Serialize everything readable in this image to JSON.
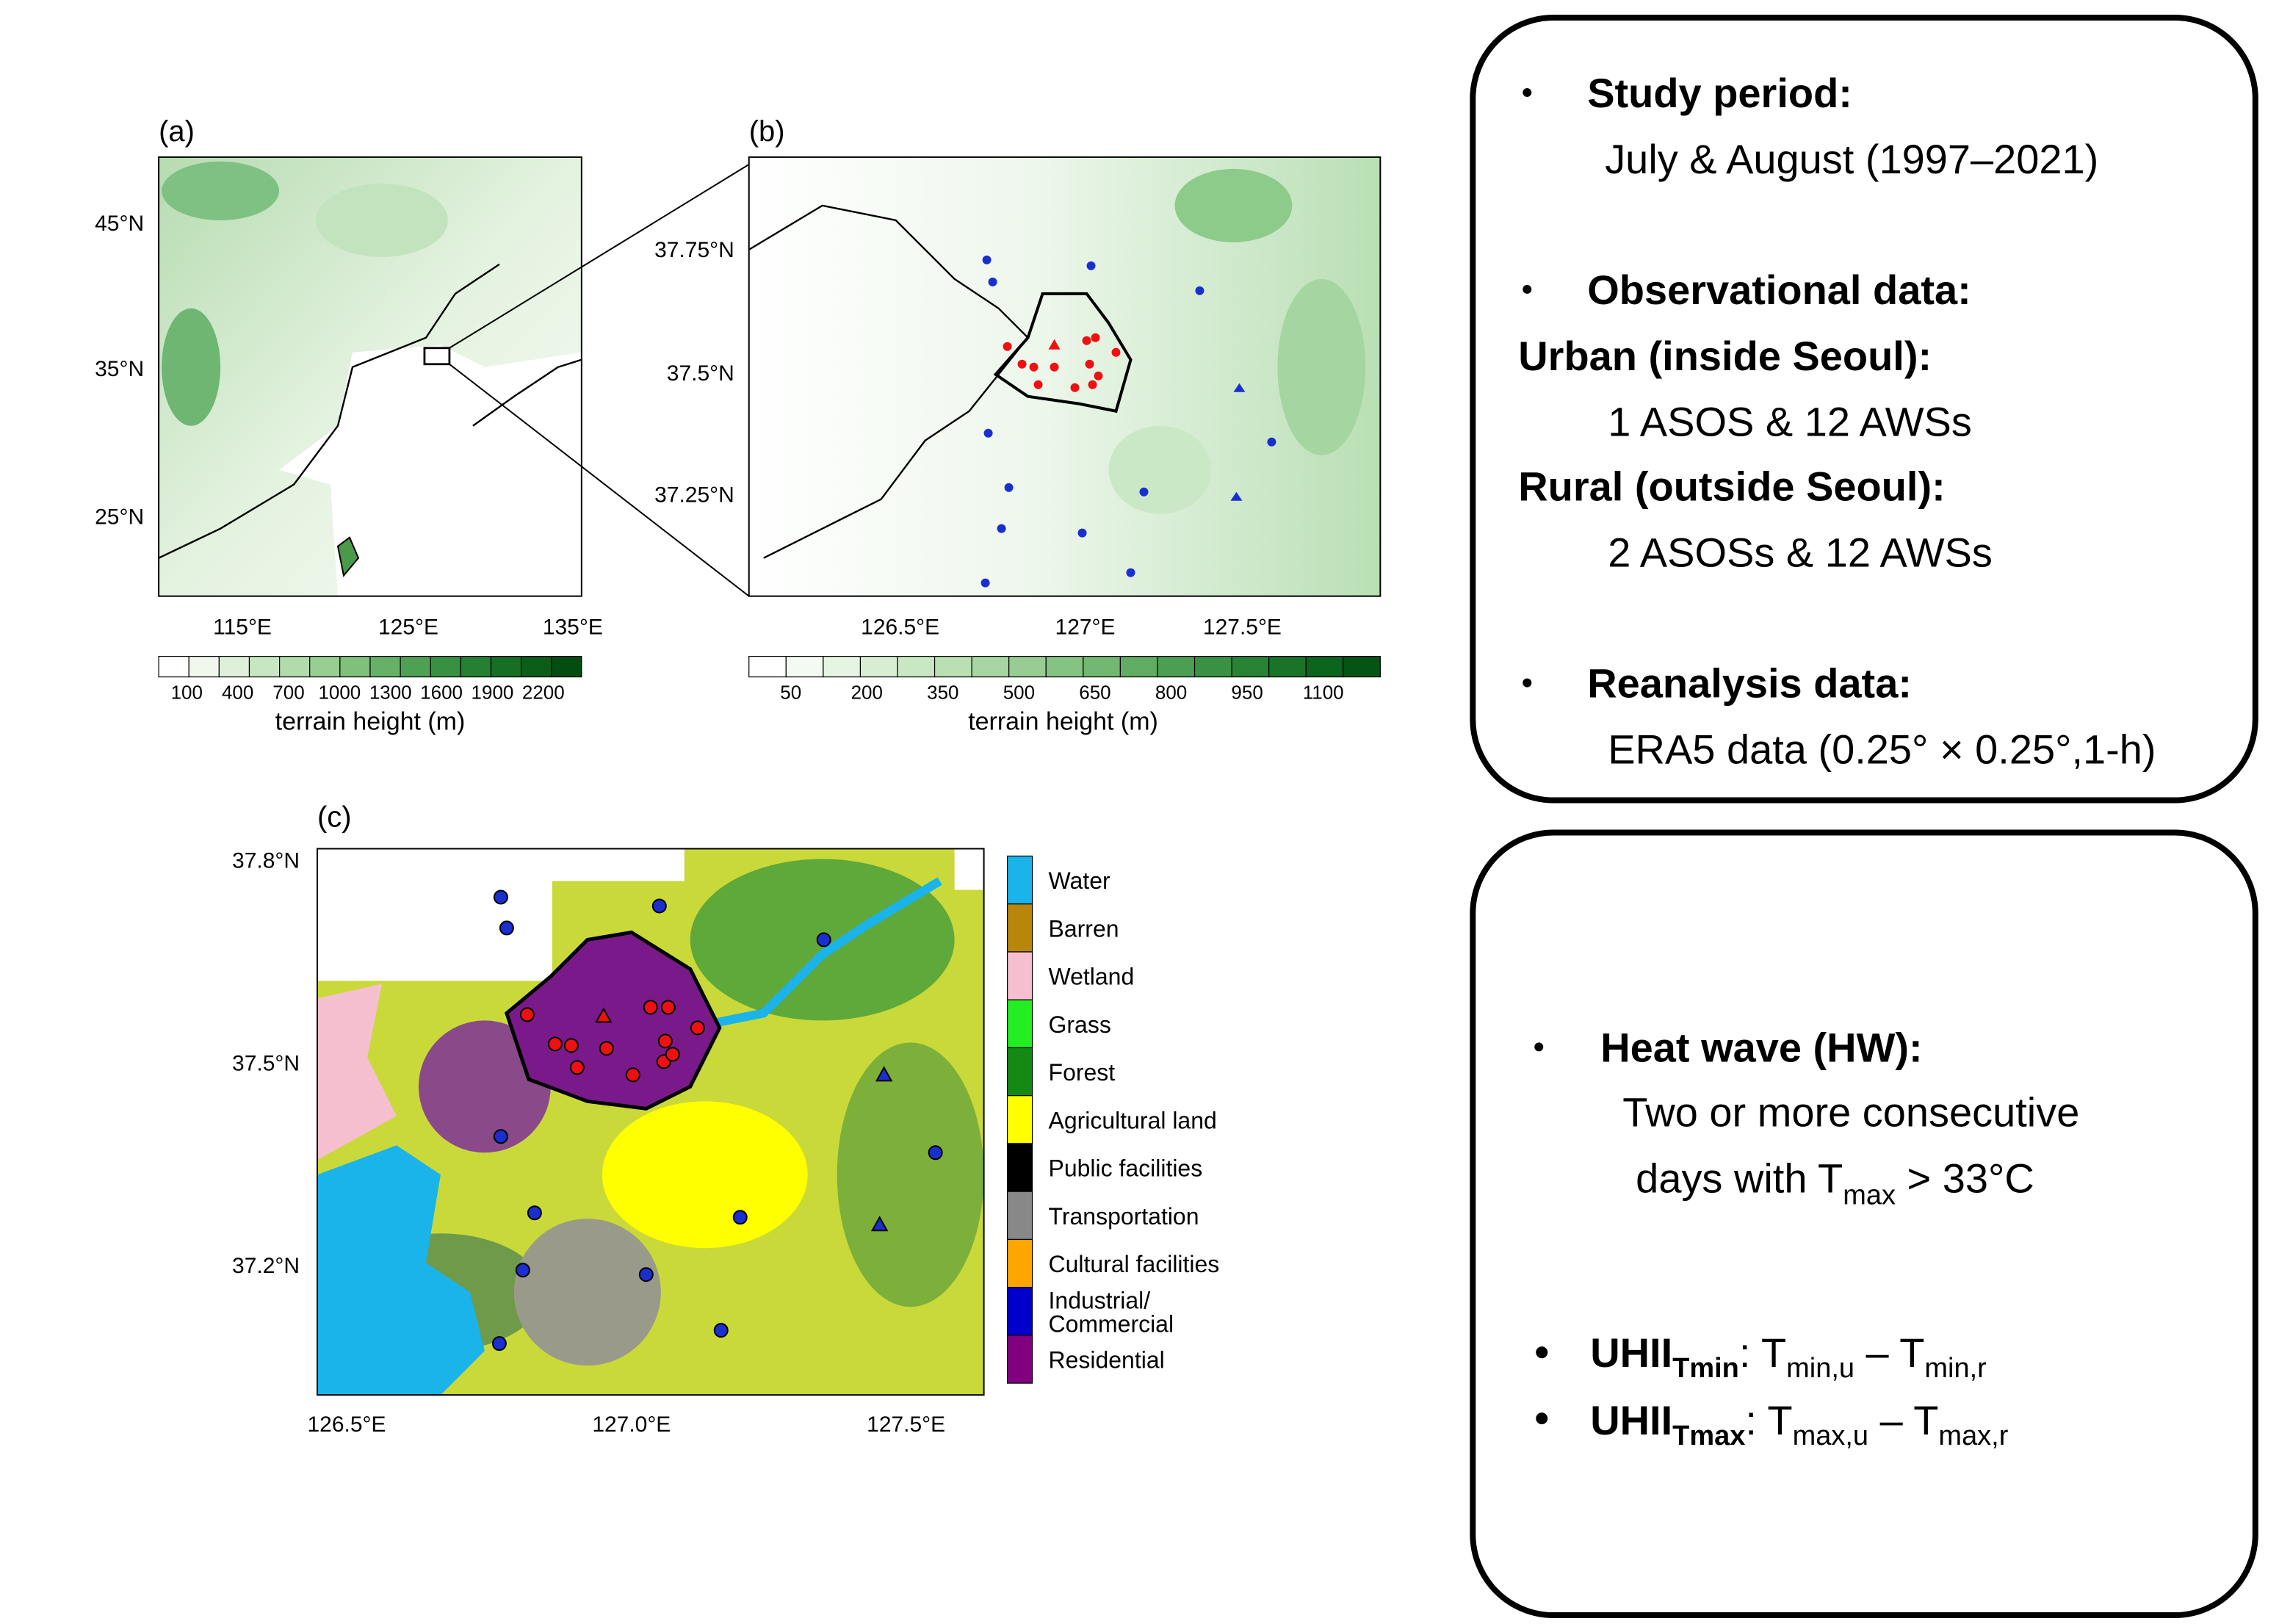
{
  "panel_a": {
    "label": "(a)",
    "lat_ticks": [
      "45°N",
      "35°N",
      "25°N"
    ],
    "lon_ticks": [
      "115°E",
      "125°E",
      "135°E"
    ],
    "colorbar_ticks": [
      100,
      400,
      700,
      1000,
      1300,
      1600,
      1900,
      2200
    ],
    "colorbar_title": "terrain height (m)"
  },
  "panel_b": {
    "label": "(b)",
    "lat_ticks": [
      "37.75°N",
      "37.5°N",
      "37.25°N"
    ],
    "lon_ticks": [
      "126.5°E",
      "127°E",
      "127.5°E"
    ],
    "colorbar_ticks": [
      50,
      200,
      350,
      500,
      650,
      800,
      950,
      1100
    ],
    "colorbar_title": "terrain height (m)"
  },
  "panel_c": {
    "label": "(c)",
    "lat_ticks": [
      "37.8°N",
      "37.5°N",
      "37.2°N"
    ],
    "lon_ticks": [
      "126.5°E",
      "127.0°E",
      "127.5°E"
    ],
    "legend": [
      {
        "lines": [
          "Water"
        ],
        "color": "#1ab4ea"
      },
      {
        "lines": [
          "Barren"
        ],
        "color": "#b8860b"
      },
      {
        "lines": [
          "Wetland"
        ],
        "color": "#f6bfd0"
      },
      {
        "lines": [
          "Grass"
        ],
        "color": "#22ee22"
      },
      {
        "lines": [
          "Forest"
        ],
        "color": "#138a13"
      },
      {
        "lines": [
          "Agricultural land"
        ],
        "color": "#ffff00"
      },
      {
        "lines": [
          "Public facilities"
        ],
        "color": "#000000"
      },
      {
        "lines": [
          "Transportation"
        ],
        "color": "#888888"
      },
      {
        "lines": [
          "Cultural facilities"
        ],
        "color": "#ffa500"
      },
      {
        "lines": [
          "Industrial/",
          "Commercial"
        ],
        "color": "#0000cc"
      },
      {
        "lines": [
          "Residential"
        ],
        "color": "#800080"
      }
    ]
  },
  "box1": {
    "study_period_heading": "Study period:",
    "study_period": "July & August  (1997–2021)",
    "obs_heading": "Observational data:",
    "urban_heading": "Urban (inside Seoul):",
    "urban": "1 ASOS & 12 AWSs",
    "rural_heading": "Rural (outside Seoul):",
    "rural": "2 ASOSs & 12 AWSs",
    "reanalysis_heading": "Reanalysis data:",
    "reanalysis": "ERA5 data (0.25° × 0.25°,1-h)"
  },
  "box2": {
    "heat_wave_heading": "Heat wave (HW):",
    "heat_wave_line1": "Two or more consecutive",
    "heat_wave_line2": "days with T",
    "tmax_sub": "max",
    "threshold": " > 33°C",
    "uhii": [
      {
        "label": "UHII",
        "label_sub": "Tmin",
        "rest": ": T",
        "a_sub": "min,u",
        "dash": " – T",
        "b_sub": "min,r"
      },
      {
        "label": "UHII",
        "label_sub": "Tmax",
        "rest": ": T",
        "a_sub": "max,u",
        "dash": " – T",
        "b_sub": "max,r"
      }
    ]
  }
}
